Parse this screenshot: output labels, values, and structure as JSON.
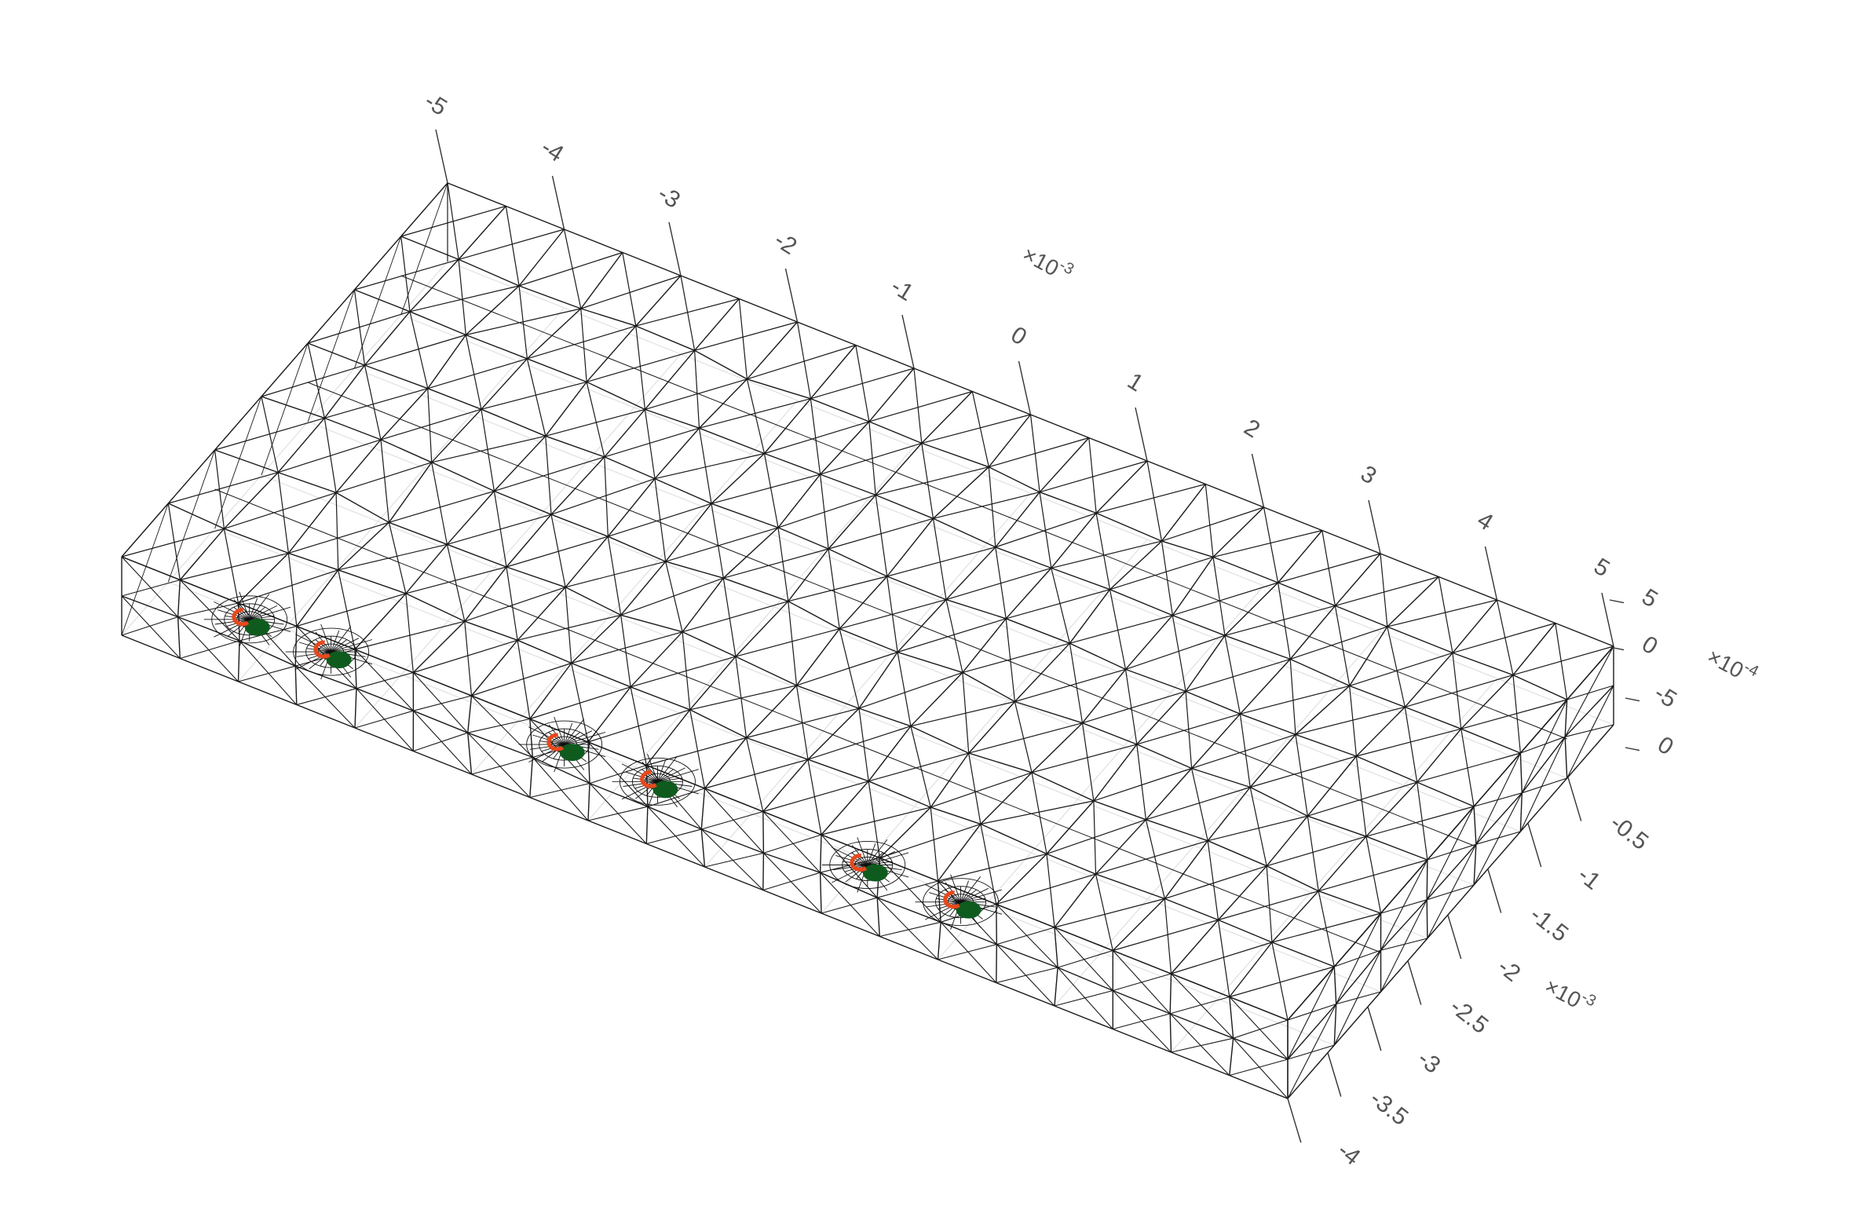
{
  "figure": {
    "type": "3d-wireframe-mesh",
    "background": "#ffffff",
    "colors": {
      "edges": "#1a1a1a",
      "hidden_edges": "#e0e0e0",
      "axis_text": "#555555",
      "marker_orange": "#e8481c",
      "marker_green": "#0f5b1e"
    },
    "axes": {
      "x": {
        "ticks": [
          "-5",
          "-4",
          "-3",
          "-2",
          "-1",
          "0",
          "1",
          "2",
          "3",
          "4",
          "5"
        ],
        "exponent_base": "×10",
        "exponent_power": "-3"
      },
      "z": {
        "ticks": [
          "5",
          "0",
          "-5",
          "0"
        ],
        "exponent_base": "×10",
        "exponent_power": "-4"
      },
      "y": {
        "ticks": [
          "-0.5",
          "-1",
          "-1.5",
          "-2",
          "-2.5",
          "-3",
          "-3.5",
          "-4"
        ],
        "exponent_base": "×10",
        "exponent_power": "-3"
      }
    },
    "mesh": {
      "length_divisions": 20,
      "depth_divisions": 7,
      "height_divisions": 2
    },
    "defects": {
      "count": 6,
      "positions_along_length": [
        0.09,
        0.16,
        0.36,
        0.44,
        0.62,
        0.7
      ]
    }
  }
}
